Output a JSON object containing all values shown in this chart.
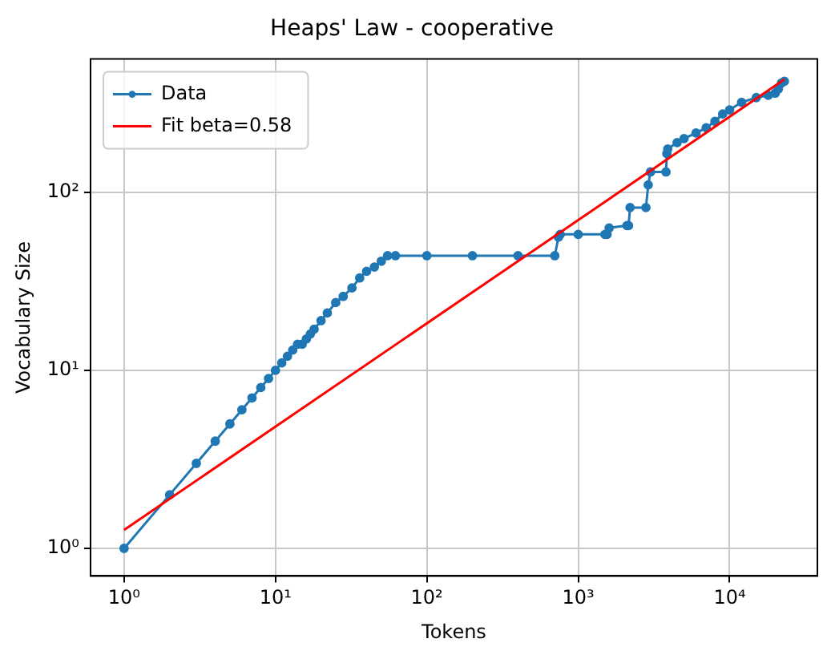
{
  "chart_data": {
    "type": "line",
    "title": "Heaps' Law - cooperative",
    "xlabel": "Tokens",
    "ylabel": "Vocabulary Size",
    "log": "xy",
    "grid": true,
    "legend": "top left",
    "xlim": [
      0.63,
      38000
    ],
    "ylim": [
      0.73,
      560
    ],
    "xticks": [
      {
        "value": 1,
        "label": "10⁰"
      },
      {
        "value": 10,
        "label": "10¹"
      },
      {
        "value": 100,
        "label": "10²"
      },
      {
        "value": 1000,
        "label": "10³"
      },
      {
        "value": 10000,
        "label": "10⁴"
      }
    ],
    "yticks": [
      {
        "value": 1,
        "label": "10⁰"
      },
      {
        "value": 10,
        "label": "10¹"
      },
      {
        "value": 100,
        "label": "10²"
      }
    ],
    "series": [
      {
        "name": "Data",
        "color": "#1f77b4",
        "marker": "circle",
        "x": [
          1,
          2,
          3,
          4,
          5,
          6,
          7,
          8,
          9,
          10,
          11,
          12,
          13,
          14,
          15,
          16,
          17,
          18,
          20,
          22,
          25,
          28,
          32,
          36,
          40,
          45,
          50,
          55,
          62,
          100,
          200,
          400,
          700,
          740,
          760,
          1000,
          1500,
          1550,
          1600,
          2100,
          2150,
          2200,
          2800,
          2900,
          3000,
          3800,
          3850,
          3900,
          4500,
          5000,
          6000,
          7000,
          8000,
          9000,
          10000,
          12000,
          15000,
          18000,
          20000,
          21000,
          22000,
          23000
        ],
        "values": [
          1,
          2,
          3,
          4,
          5,
          6,
          7,
          8,
          9,
          10,
          11,
          12,
          13,
          14,
          14,
          15,
          16,
          17,
          19,
          21,
          24,
          26,
          29,
          33,
          36,
          38,
          41,
          44,
          44,
          44,
          44,
          44,
          44,
          56,
          58,
          58,
          58,
          58,
          63,
          65,
          65,
          82,
          82,
          110,
          130,
          130,
          165,
          175,
          190,
          200,
          215,
          230,
          250,
          275,
          290,
          320,
          340,
          350,
          360,
          380,
          410,
          420
        ]
      },
      {
        "name": "Fit beta=0.58",
        "color": "#ff0000",
        "marker": "none",
        "x": [
          1,
          23000
        ],
        "values": [
          1.27,
          430
        ]
      }
    ]
  }
}
